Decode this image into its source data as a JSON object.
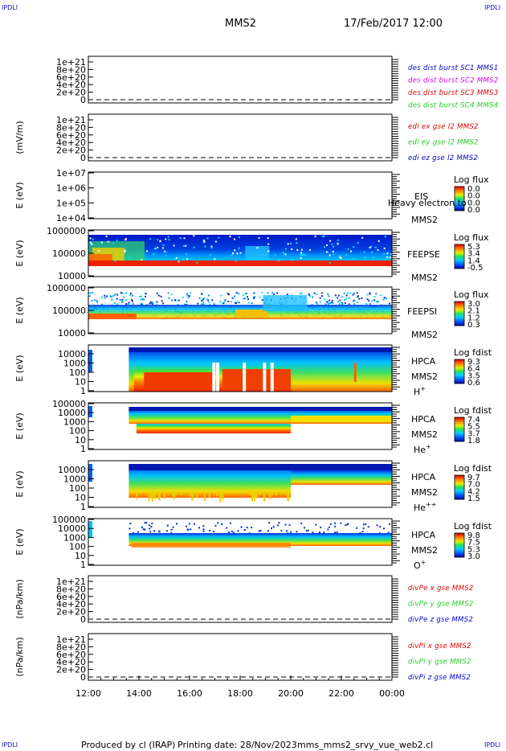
{
  "corners": {
    "label": "IPDLI"
  },
  "header": {
    "spacecraft": "MMS2",
    "datetime": "17/Feb/2017 12:00"
  },
  "footer": {
    "produced": "Produced by cl (IRAP)",
    "printing": "Printing date: 28/Nov/2023",
    "script": "mms_mms2_srvy_vue_web2.cl"
  },
  "colors": {
    "red": "#e00000",
    "magenta": "#e000e0",
    "green": "#22cc22",
    "blue": "#0000cc"
  },
  "chart_data": {
    "type": "heatmap",
    "x_ticks": [
      "12:00",
      "14:00",
      "16:00",
      "18:00",
      "20:00",
      "22:00",
      "00:00"
    ],
    "panels": [
      {
        "id": "des_dist",
        "ylabel": "",
        "yticks": [
          "1e+21",
          "8e+20",
          "6e+20",
          "4e+20",
          "2e+20",
          "0"
        ],
        "legend": [
          {
            "text": "des dist burst SC1 MMS1",
            "color": "blue"
          },
          {
            "text": "des dist burst SC2 MMS2",
            "color": "magenta"
          },
          {
            "text": "des dist burst SC3 MMS3",
            "color": "red"
          },
          {
            "text": "des dist burst SC4 MMS4",
            "color": "green"
          }
        ]
      },
      {
        "id": "edi",
        "ylabel": "(mV/m)",
        "yticks": [
          "1e+21",
          "8e+20",
          "6e+20",
          "4e+20",
          "2e+20",
          "0"
        ],
        "legend": [
          {
            "text": "edi ex gse l2 MMS2",
            "color": "red"
          },
          {
            "text": "edi ey gse l2 MMS2",
            "color": "green"
          },
          {
            "text": "edi ez gse l2 MMS2",
            "color": "blue"
          }
        ]
      },
      {
        "id": "eis",
        "ylabel": "E (eV)",
        "yticks": [
          "1e+07",
          "1e+06",
          "1e+05",
          "1e+04"
        ],
        "instrument": [
          "EIS",
          "MMS2"
        ],
        "overlay": "Heavy electron to",
        "cbar": {
          "title": "Log flux",
          "values": [
            "0.0",
            "0.0",
            "0.0",
            "0.0"
          ]
        }
      },
      {
        "id": "feepse",
        "ylabel": "E (eV)",
        "yticks": [
          "1000000",
          "100000",
          "10000"
        ],
        "instrument": [
          "FEEPSE",
          "MMS2"
        ],
        "cbar": {
          "title": "Log flux",
          "values": [
            "5.3",
            "3.4",
            "1.4",
            "-0.5"
          ]
        }
      },
      {
        "id": "feepsi",
        "ylabel": "E (eV)",
        "yticks": [
          "1000000",
          "100000",
          "10000"
        ],
        "instrument": [
          "FEEPSI",
          "MMS2"
        ],
        "cbar": {
          "title": "Log flux",
          "values": [
            "3.0",
            "2.1",
            "1.2",
            "0.3"
          ]
        }
      },
      {
        "id": "hpca_h",
        "ylabel": "E (eV)",
        "yticks": [
          "10000",
          "1000",
          "100",
          "10",
          "1"
        ],
        "instrument": [
          "HPCA",
          "MMS2"
        ],
        "species": "H",
        "species_sup": "+",
        "cbar": {
          "title": "Log fdist",
          "values": [
            "9.3",
            "6.4",
            "3.5",
            "0.6"
          ]
        }
      },
      {
        "id": "hpca_he",
        "ylabel": "E (eV)",
        "yticks": [
          "100000",
          "10000",
          "1000",
          "100",
          "10",
          "1"
        ],
        "instrument": [
          "HPCA",
          "MMS2"
        ],
        "species": "He",
        "species_sup": "+",
        "cbar": {
          "title": "Log fdist",
          "values": [
            "7.4",
            "5.5",
            "3.7",
            "1.8"
          ]
        }
      },
      {
        "id": "hpca_hepp",
        "ylabel": "E (eV)",
        "yticks": [
          "10000",
          "1000",
          "100",
          "10",
          "1"
        ],
        "instrument": [
          "HPCA",
          "MMS2"
        ],
        "species": "He",
        "species_sup": "++",
        "cbar": {
          "title": "Log fdist",
          "values": [
            "9.7",
            "7.0",
            "4.2",
            "1.5"
          ]
        }
      },
      {
        "id": "hpca_o",
        "ylabel": "E (eV)",
        "yticks": [
          "100000",
          "10000",
          "1000",
          "100",
          "10",
          "1"
        ],
        "instrument": [
          "HPCA",
          "MMS2"
        ],
        "species": "O",
        "species_sup": "+",
        "cbar": {
          "title": "Log fdist",
          "values": [
            "9.8",
            "7.5",
            "5.3",
            "3.0"
          ]
        }
      },
      {
        "id": "divpe",
        "ylabel": "(nPa/km)",
        "yticks": [
          "1e+21",
          "8e+20",
          "6e+20",
          "4e+20",
          "2e+20",
          "0"
        ],
        "legend": [
          {
            "text": "divPe x gse MMS2",
            "color": "red"
          },
          {
            "text": "divPe y gse MMS2",
            "color": "green"
          },
          {
            "text": "divPe z gse MMS2",
            "color": "blue"
          }
        ]
      },
      {
        "id": "divpi",
        "ylabel": "(nPa/km)",
        "yticks": [
          "1e+21",
          "8e+20",
          "6e+20",
          "4e+20",
          "2e+20",
          "0"
        ],
        "legend": [
          {
            "text": "divPi x gse MMS2",
            "color": "red"
          },
          {
            "text": "divPi y gse MMS2",
            "color": "green"
          },
          {
            "text": "divPi z gse MMS2",
            "color": "blue"
          }
        ]
      }
    ]
  }
}
